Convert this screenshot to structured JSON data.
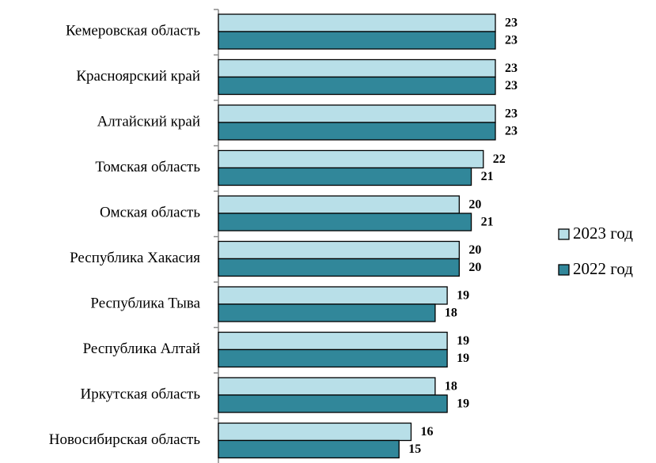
{
  "chart_data": {
    "type": "bar",
    "orientation": "horizontal",
    "categories": [
      "Кемеровская область",
      "Красноярский край",
      "Алтайский край",
      "Томская область",
      "Омская область",
      "Республика Хакасия",
      "Республика Тыва",
      "Республика Алтай",
      "Иркутская область",
      "Новосибирская область"
    ],
    "series": [
      {
        "name": "2023 год",
        "color": "#b8dfe8",
        "values": [
          23,
          23,
          23,
          22,
          20,
          20,
          19,
          19,
          18,
          16
        ]
      },
      {
        "name": "2022 год",
        "color": "#31879a",
        "values": [
          23,
          23,
          23,
          21,
          21,
          20,
          18,
          19,
          19,
          15
        ]
      }
    ],
    "xlim": [
      0,
      26
    ],
    "data_labels": true,
    "grid": false,
    "legend_position": "right"
  }
}
